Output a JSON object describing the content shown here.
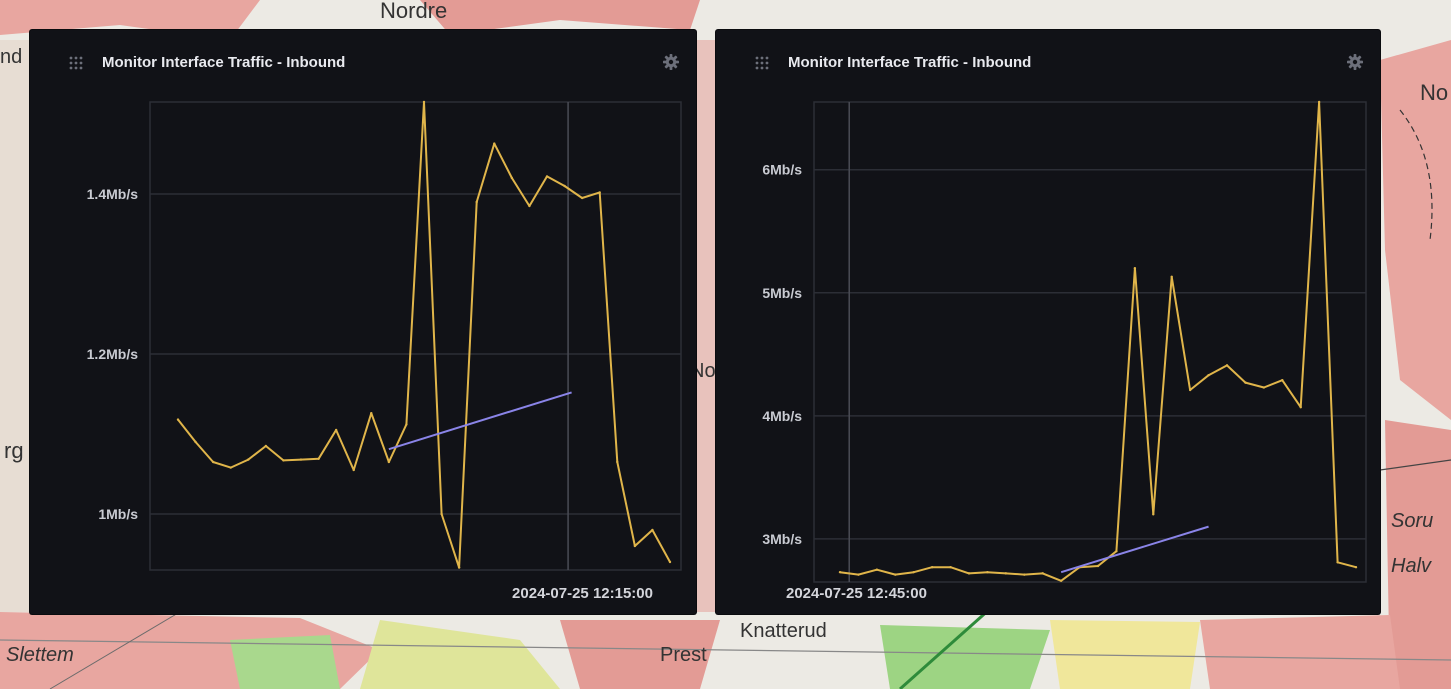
{
  "map": {
    "labels": [
      "Nordre",
      "Knatterud",
      "Prest",
      "Slettem",
      "Soru",
      "Halv",
      "No",
      "nd",
      "Nord",
      "rg"
    ]
  },
  "colors": {
    "panel_bg": "#111217",
    "series_line": "#e0b54a",
    "trend_line": "#8a84e8",
    "grid": "#2c2e36",
    "cursor": "#4a4c55"
  },
  "panels": [
    {
      "title": "Monitor Interface Traffic - Inbound",
      "drag_icon": "drag-handle-icon",
      "settings_icon": "gear-icon",
      "cursor_time": "2024-07-25 12:15:00"
    },
    {
      "title": "Monitor Interface Traffic - Inbound",
      "drag_icon": "drag-handle-icon",
      "settings_icon": "gear-icon",
      "cursor_time": "2024-07-25 12:45:00"
    }
  ],
  "chart_data": [
    {
      "type": "line",
      "title": "Monitor Interface Traffic - Inbound",
      "yunit": "Mb/s",
      "ylim": [
        0.93,
        1.515
      ],
      "yticks": [
        1.0,
        1.2,
        1.4
      ],
      "ytick_labels": [
        "1Mb/s",
        "1.2Mb/s",
        "1.4Mb/s"
      ],
      "grid": true,
      "x_index_range": [
        0,
        29
      ],
      "cursor_index": 22.2,
      "series": [
        {
          "values": [
            1.118,
            1.09,
            1.065,
            1.058,
            1.068,
            1.085,
            1.067,
            1.068,
            1.069,
            1.105,
            1.055,
            1.126,
            1.065,
            1.112,
            1.515,
            1.0,
            0.933,
            1.39,
            1.463,
            1.42,
            1.385,
            1.422,
            1.41,
            1.395,
            1.402,
            1.065,
            0.96,
            0.98,
            0.94
          ]
        }
      ],
      "trend": {
        "from": [
          12,
          1.081
        ],
        "to": [
          22.4,
          1.152
        ]
      }
    },
    {
      "type": "line",
      "title": "Monitor Interface Traffic - Inbound",
      "yunit": "Mb/s",
      "ylim": [
        2.65,
        6.55
      ],
      "yticks": [
        3,
        4,
        5,
        6
      ],
      "ytick_labels": [
        "3Mb/s",
        "4Mb/s",
        "5Mb/s",
        "6Mb/s"
      ],
      "grid": true,
      "x_index_range": [
        0,
        29
      ],
      "cursor_index": 0.5,
      "series": [
        {
          "values": [
            2.73,
            2.71,
            2.75,
            2.71,
            2.73,
            2.77,
            2.77,
            2.72,
            2.73,
            2.72,
            2.71,
            2.72,
            2.66,
            2.77,
            2.78,
            2.9,
            5.2,
            3.2,
            5.13,
            4.21,
            4.33,
            4.41,
            4.27,
            4.23,
            4.29,
            4.07,
            6.55,
            2.81,
            2.77
          ]
        }
      ],
      "trend": {
        "from": [
          12,
          2.73
        ],
        "to": [
          20,
          3.1
        ]
      }
    }
  ]
}
